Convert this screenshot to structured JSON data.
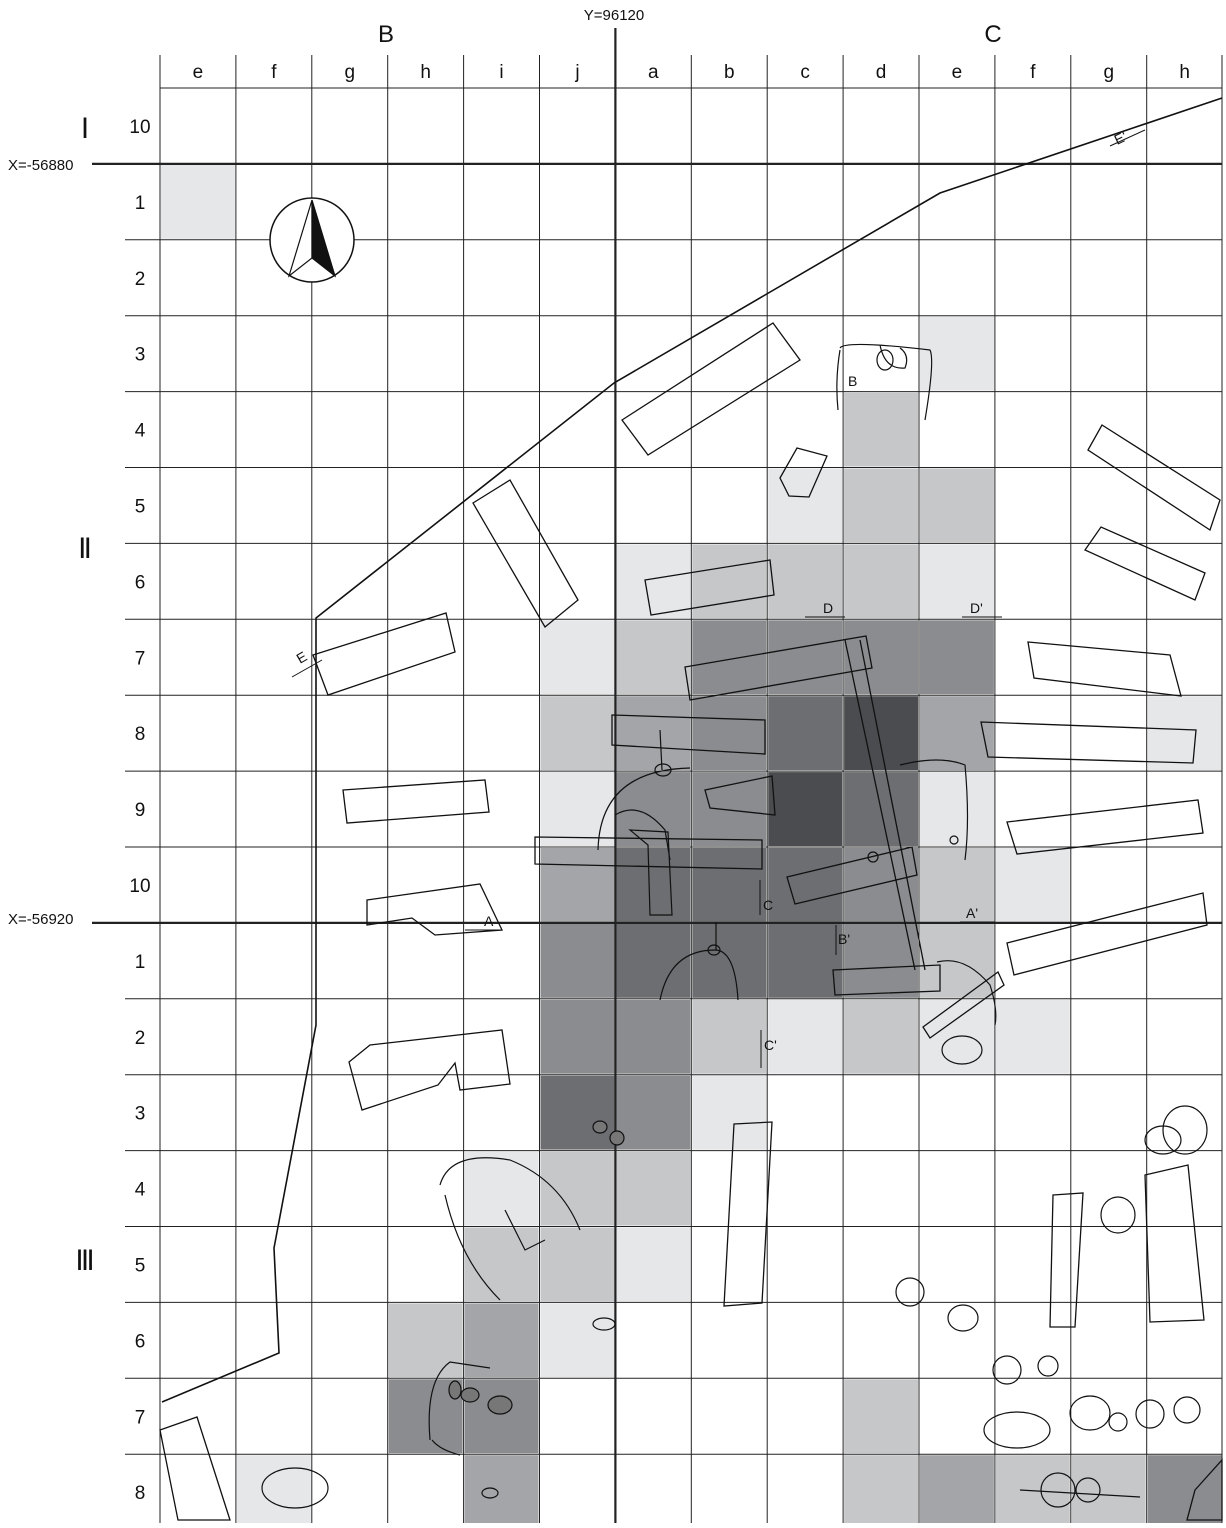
{
  "grid": {
    "big_columns": [
      "B",
      "C"
    ],
    "columns": [
      "e",
      "f",
      "g",
      "h",
      "i",
      "j",
      "a",
      "b",
      "c",
      "d",
      "e",
      "f",
      "g",
      "h"
    ],
    "rows": [
      "10",
      "1",
      "2",
      "3",
      "4",
      "5",
      "6",
      "7",
      "8",
      "9",
      "10",
      "1",
      "2",
      "3",
      "4",
      "5",
      "6",
      "7",
      "8"
    ],
    "sections": [
      "Ⅰ",
      "Ⅱ",
      "Ⅲ"
    ]
  },
  "coordinates": {
    "y_line": "Y=96120",
    "x_line_top": "X=-56880",
    "x_line_bottom": "X=-56920"
  },
  "section_markers": [
    "E",
    "E'",
    "D",
    "D'",
    "A",
    "A'",
    "B",
    "B'",
    "C",
    "C'"
  ],
  "shading_levels": [
    "#e6e7e9",
    "#c6c7c9",
    "#a4a5a8",
    "#8b8c8f",
    "#6d6e71",
    "#4b4c4f"
  ],
  "north_arrow": "north-arrow-icon",
  "colors": {
    "line": "#111111",
    "grid": "#222222",
    "background": "#ffffff"
  }
}
